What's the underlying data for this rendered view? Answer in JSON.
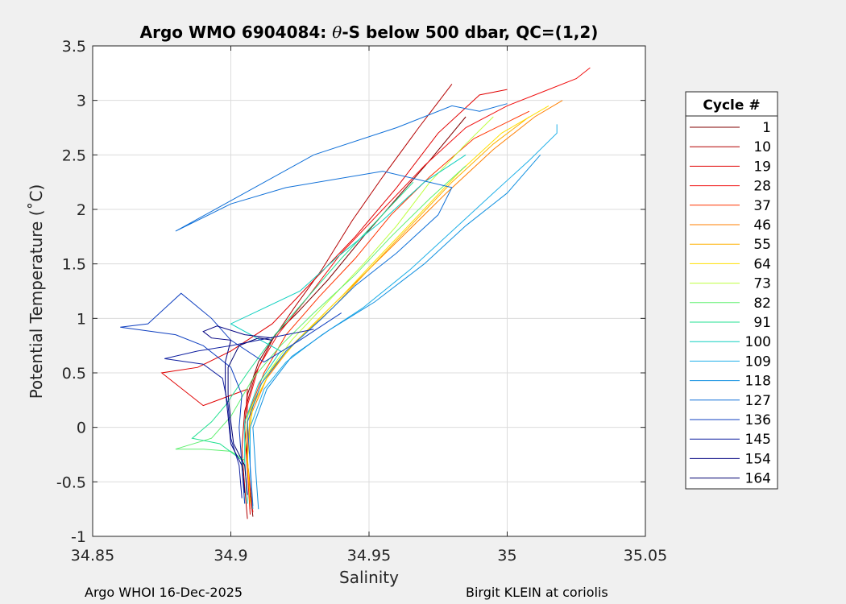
{
  "footer": {
    "left": "Argo WHOI 16-Dec-2025",
    "right": "Birgit KLEIN at coriolis"
  },
  "chart_data": {
    "type": "line",
    "title_main": "Argo WMO 6904084: ",
    "title_theta": "θ",
    "title_rest": "-S below 500 dbar,  QC=(1,2)",
    "xlabel": "Salinity",
    "ylabel": "Potential Temperature (˚C)",
    "xlim": [
      34.85,
      35.05
    ],
    "ylim": [
      -1,
      3.5
    ],
    "xticks": [
      34.85,
      34.9,
      34.95,
      35,
      35.05
    ],
    "xtick_labels": [
      "34.85",
      "34.9",
      "34.95",
      "35",
      "35.05"
    ],
    "yticks": [
      -1,
      -0.5,
      0,
      0.5,
      1,
      1.5,
      2,
      2.5,
      3,
      3.5
    ],
    "ytick_labels": [
      "-1",
      "-0.5",
      "0",
      "0.5",
      "1",
      "1.5",
      "2",
      "2.5",
      "3",
      "3.5"
    ],
    "grid": true,
    "legend_title": "Cycle #",
    "legend_placement": "right-outside",
    "series": [
      {
        "name": "1",
        "color": "#800000",
        "points": [
          [
            34.908,
            -0.82
          ],
          [
            34.907,
            -0.6
          ],
          [
            34.906,
            -0.3
          ],
          [
            34.905,
            0.0
          ],
          [
            34.906,
            0.3
          ],
          [
            34.91,
            0.6
          ],
          [
            34.916,
            0.85
          ],
          [
            34.924,
            1.05
          ],
          [
            34.935,
            1.35
          ],
          [
            34.948,
            1.75
          ],
          [
            34.96,
            2.1
          ],
          [
            34.972,
            2.45
          ],
          [
            34.985,
            2.85
          ]
        ]
      },
      {
        "name": "10",
        "color": "#b40000",
        "points": [
          [
            34.906,
            -0.84
          ],
          [
            34.905,
            -0.55
          ],
          [
            34.904,
            -0.2
          ],
          [
            34.905,
            0.15
          ],
          [
            34.909,
            0.5
          ],
          [
            34.915,
            0.8
          ],
          [
            34.923,
            1.1
          ],
          [
            34.933,
            1.45
          ],
          [
            34.944,
            1.9
          ],
          [
            34.955,
            2.3
          ],
          [
            34.968,
            2.75
          ],
          [
            34.98,
            3.15
          ]
        ]
      },
      {
        "name": "19",
        "color": "#e00000",
        "points": [
          [
            34.907,
            -0.8
          ],
          [
            34.906,
            -0.4
          ],
          [
            34.905,
            0.0
          ],
          [
            34.906,
            0.35
          ],
          [
            34.89,
            0.2
          ],
          [
            34.875,
            0.5
          ],
          [
            34.888,
            0.55
          ],
          [
            34.9,
            0.7
          ],
          [
            34.915,
            0.95
          ],
          [
            34.93,
            1.35
          ],
          [
            34.945,
            1.75
          ],
          [
            34.96,
            2.2
          ],
          [
            34.975,
            2.7
          ],
          [
            34.99,
            3.05
          ],
          [
            35.0,
            3.1
          ]
        ]
      },
      {
        "name": "28",
        "color": "#f01010",
        "points": [
          [
            34.908,
            -0.78
          ],
          [
            34.906,
            -0.3
          ],
          [
            34.906,
            0.2
          ],
          [
            34.91,
            0.55
          ],
          [
            34.917,
            0.85
          ],
          [
            34.928,
            1.2
          ],
          [
            34.94,
            1.6
          ],
          [
            34.955,
            2.0
          ],
          [
            34.97,
            2.4
          ],
          [
            34.985,
            2.75
          ],
          [
            35.0,
            2.95
          ],
          [
            35.015,
            3.1
          ],
          [
            35.025,
            3.2
          ],
          [
            35.03,
            3.3
          ]
        ]
      },
      {
        "name": "37",
        "color": "#ff3300",
        "points": [
          [
            34.907,
            -0.75
          ],
          [
            34.906,
            -0.35
          ],
          [
            34.906,
            0.1
          ],
          [
            34.912,
            0.5
          ],
          [
            34.92,
            0.85
          ],
          [
            34.932,
            1.2
          ],
          [
            34.945,
            1.55
          ],
          [
            34.958,
            1.95
          ],
          [
            34.972,
            2.3
          ],
          [
            34.988,
            2.65
          ],
          [
            35.008,
            2.9
          ]
        ]
      },
      {
        "name": "46",
        "color": "#ff7f00",
        "points": [
          [
            34.907,
            -0.7
          ],
          [
            34.906,
            -0.3
          ],
          [
            34.907,
            0.1
          ],
          [
            34.913,
            0.45
          ],
          [
            34.922,
            0.75
          ],
          [
            34.934,
            1.05
          ],
          [
            34.948,
            1.4
          ],
          [
            34.962,
            1.75
          ],
          [
            34.978,
            2.15
          ],
          [
            34.995,
            2.55
          ],
          [
            35.01,
            2.85
          ],
          [
            35.02,
            3.0
          ]
        ]
      },
      {
        "name": "55",
        "color": "#ffb000",
        "points": [
          [
            34.907,
            -0.7
          ],
          [
            34.906,
            -0.3
          ],
          [
            34.907,
            0.15
          ],
          [
            34.914,
            0.5
          ],
          [
            34.924,
            0.8
          ],
          [
            34.937,
            1.1
          ],
          [
            34.95,
            1.45
          ],
          [
            34.965,
            1.85
          ],
          [
            34.98,
            2.25
          ],
          [
            34.995,
            2.6
          ],
          [
            35.008,
            2.85
          ]
        ]
      },
      {
        "name": "64",
        "color": "#ffe000",
        "points": [
          [
            34.907,
            -0.7
          ],
          [
            34.906,
            -0.25
          ],
          [
            34.908,
            0.2
          ],
          [
            34.915,
            0.55
          ],
          [
            34.926,
            0.85
          ],
          [
            34.94,
            1.2
          ],
          [
            34.953,
            1.55
          ],
          [
            34.968,
            1.95
          ],
          [
            34.983,
            2.35
          ],
          [
            34.998,
            2.7
          ],
          [
            35.015,
            2.95
          ]
        ]
      },
      {
        "name": "73",
        "color": "#bfff40",
        "points": [
          [
            34.906,
            -0.7
          ],
          [
            34.905,
            -0.3
          ],
          [
            34.906,
            0.1
          ],
          [
            34.912,
            0.45
          ],
          [
            34.922,
            0.8
          ],
          [
            34.935,
            1.15
          ],
          [
            34.948,
            1.5
          ],
          [
            34.96,
            1.85
          ],
          [
            34.972,
            2.25
          ],
          [
            34.985,
            2.6
          ],
          [
            34.995,
            2.85
          ]
        ]
      },
      {
        "name": "82",
        "color": "#60f070",
        "points": [
          [
            34.906,
            -0.7
          ],
          [
            34.905,
            -0.3
          ],
          [
            34.9,
            -0.22
          ],
          [
            34.89,
            -0.2
          ],
          [
            34.88,
            -0.2
          ],
          [
            34.893,
            -0.1
          ],
          [
            34.9,
            0.1
          ],
          [
            34.908,
            0.45
          ],
          [
            34.918,
            0.75
          ],
          [
            34.93,
            1.05
          ],
          [
            34.945,
            1.4
          ],
          [
            34.958,
            1.75
          ],
          [
            34.972,
            2.1
          ],
          [
            34.985,
            2.4
          ]
        ]
      },
      {
        "name": "91",
        "color": "#20e090",
        "points": [
          [
            34.905,
            -0.7
          ],
          [
            34.904,
            -0.3
          ],
          [
            34.896,
            -0.15
          ],
          [
            34.886,
            -0.1
          ],
          [
            34.893,
            0.05
          ],
          [
            34.898,
            0.2
          ],
          [
            34.906,
            0.5
          ],
          [
            34.916,
            0.85
          ],
          [
            34.928,
            1.2
          ],
          [
            34.94,
            1.55
          ],
          [
            34.953,
            1.9
          ],
          [
            34.966,
            2.25
          ]
        ]
      },
      {
        "name": "100",
        "color": "#10d0c0",
        "points": [
          [
            34.906,
            -0.7
          ],
          [
            34.905,
            -0.3
          ],
          [
            34.905,
            0.05
          ],
          [
            34.91,
            0.4
          ],
          [
            34.918,
            0.7
          ],
          [
            34.9,
            0.95
          ],
          [
            34.925,
            1.25
          ],
          [
            34.938,
            1.55
          ],
          [
            34.955,
            1.9
          ],
          [
            34.97,
            2.25
          ],
          [
            34.985,
            2.5
          ]
        ]
      },
      {
        "name": "109",
        "color": "#20b0e8",
        "points": [
          [
            34.908,
            -0.75
          ],
          [
            34.907,
            -0.4
          ],
          [
            34.907,
            0.0
          ],
          [
            34.912,
            0.35
          ],
          [
            34.92,
            0.6
          ],
          [
            34.933,
            0.85
          ],
          [
            34.948,
            1.1
          ],
          [
            34.965,
            1.45
          ],
          [
            34.98,
            1.8
          ],
          [
            34.995,
            2.15
          ],
          [
            35.008,
            2.45
          ],
          [
            35.018,
            2.7
          ],
          [
            35.018,
            2.78
          ]
        ]
      },
      {
        "name": "118",
        "color": "#1090e0",
        "points": [
          [
            34.91,
            -0.75
          ],
          [
            34.909,
            -0.4
          ],
          [
            34.908,
            0.0
          ],
          [
            34.913,
            0.35
          ],
          [
            34.922,
            0.65
          ],
          [
            34.936,
            0.9
          ],
          [
            34.952,
            1.15
          ],
          [
            34.97,
            1.5
          ],
          [
            34.985,
            1.85
          ],
          [
            35.0,
            2.15
          ],
          [
            35.012,
            2.5
          ]
        ]
      },
      {
        "name": "127",
        "color": "#1070d8",
        "points": [
          [
            34.908,
            -0.72
          ],
          [
            34.907,
            -0.35
          ],
          [
            34.906,
            0.05
          ],
          [
            34.911,
            0.4
          ],
          [
            34.92,
            0.7
          ],
          [
            34.933,
            1.0
          ],
          [
            34.945,
            1.3
          ],
          [
            34.96,
            1.6
          ],
          [
            34.975,
            1.95
          ],
          [
            34.98,
            2.2
          ],
          [
            34.955,
            2.35
          ],
          [
            34.92,
            2.2
          ],
          [
            34.9,
            2.05
          ],
          [
            34.88,
            1.8
          ],
          [
            34.93,
            2.5
          ],
          [
            34.96,
            2.75
          ],
          [
            34.98,
            2.95
          ],
          [
            34.99,
            2.9
          ],
          [
            35.0,
            2.97
          ]
        ]
      },
      {
        "name": "136",
        "color": "#1040c0",
        "points": [
          [
            34.905,
            -0.7
          ],
          [
            34.904,
            -0.35
          ],
          [
            34.903,
            0.0
          ],
          [
            34.904,
            0.3
          ],
          [
            34.9,
            0.55
          ],
          [
            34.89,
            0.75
          ],
          [
            34.88,
            0.85
          ],
          [
            34.86,
            0.92
          ],
          [
            34.87,
            0.95
          ],
          [
            34.882,
            1.23
          ],
          [
            34.893,
            1.0
          ],
          [
            34.9,
            0.8
          ],
          [
            34.912,
            0.6
          ],
          [
            34.925,
            0.8
          ],
          [
            34.94,
            1.05
          ]
        ]
      },
      {
        "name": "145",
        "color": "#1020a0",
        "points": [
          [
            34.904,
            -0.65
          ],
          [
            34.903,
            -0.35
          ],
          [
            34.9,
            -0.1
          ],
          [
            34.899,
            0.2
          ],
          [
            34.897,
            0.45
          ],
          [
            34.89,
            0.58
          ],
          [
            34.876,
            0.63
          ],
          [
            34.888,
            0.7
          ],
          [
            34.9,
            0.75
          ],
          [
            34.91,
            0.8
          ],
          [
            34.92,
            0.85
          ],
          [
            34.93,
            0.9
          ]
        ]
      },
      {
        "name": "154",
        "color": "#000080",
        "points": [
          [
            34.905,
            -0.6
          ],
          [
            34.904,
            -0.35
          ],
          [
            34.9,
            -0.15
          ],
          [
            34.899,
            0.1
          ],
          [
            34.898,
            0.35
          ],
          [
            34.898,
            0.6
          ],
          [
            34.9,
            0.8
          ],
          [
            34.893,
            0.82
          ],
          [
            34.89,
            0.88
          ],
          [
            34.895,
            0.93
          ],
          [
            34.905,
            0.85
          ],
          [
            34.915,
            0.82
          ]
        ]
      },
      {
        "name": "164",
        "color": "#000070",
        "points": [
          [
            34.906,
            -0.62
          ],
          [
            34.905,
            -0.35
          ],
          [
            34.901,
            -0.15
          ],
          [
            34.9,
            0.05
          ],
          [
            34.899,
            0.3
          ],
          [
            34.899,
            0.55
          ],
          [
            34.903,
            0.75
          ],
          [
            34.91,
            0.82
          ],
          [
            34.915,
            0.8
          ]
        ]
      }
    ]
  }
}
